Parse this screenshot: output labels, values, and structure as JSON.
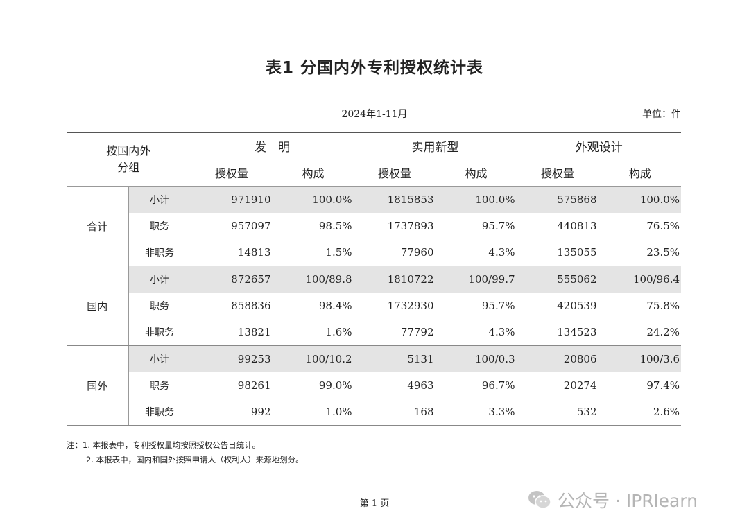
{
  "title": "表1  分国内外专利授权统计表",
  "period": "2024年1-11月",
  "unit": "单位：件",
  "header": {
    "group_label_line1": "按国内外",
    "group_label_line2": "分组",
    "categories": [
      "发　明",
      "实用新型",
      "外观设计"
    ],
    "sub_cols": [
      "授权量",
      "构成",
      "授权量",
      "构成",
      "授权量",
      "构成"
    ]
  },
  "groups": [
    {
      "name": "合计",
      "rows": [
        {
          "label": "小计",
          "values": [
            "971910",
            "100.0%",
            "1815853",
            "100.0%",
            "575868",
            "100.0%"
          ]
        },
        {
          "label": "职务",
          "values": [
            "957097",
            "98.5%",
            "1737893",
            "95.7%",
            "440813",
            "76.5%"
          ]
        },
        {
          "label": "非职务",
          "values": [
            "14813",
            "1.5%",
            "77960",
            "4.3%",
            "135055",
            "23.5%"
          ]
        }
      ]
    },
    {
      "name": "国内",
      "rows": [
        {
          "label": "小计",
          "values": [
            "872657",
            "100/89.8",
            "1810722",
            "100/99.7",
            "555062",
            "100/96.4"
          ]
        },
        {
          "label": "职务",
          "values": [
            "858836",
            "98.4%",
            "1732930",
            "95.7%",
            "420539",
            "75.8%"
          ]
        },
        {
          "label": "非职务",
          "values": [
            "13821",
            "1.6%",
            "77792",
            "4.3%",
            "134523",
            "24.2%"
          ]
        }
      ]
    },
    {
      "name": "国外",
      "rows": [
        {
          "label": "小计",
          "values": [
            "99253",
            "100/10.2",
            "5131",
            "100/0.3",
            "20806",
            "100/3.6"
          ]
        },
        {
          "label": "职务",
          "values": [
            "98261",
            "99.0%",
            "4963",
            "96.7%",
            "20274",
            "97.4%"
          ]
        },
        {
          "label": "非职务",
          "values": [
            "992",
            "1.0%",
            "168",
            "3.3%",
            "532",
            "2.6%"
          ]
        }
      ]
    }
  ],
  "notes": [
    "注：1. 本报表中，专利授权量均按照授权公告日统计。",
    "2. 本报表中，国内和国外按照申请人（权利人）来源地划分。"
  ],
  "page_number": "第 1 页",
  "watermark": {
    "text": "公众号 · IPRlearn",
    "icon": "wechat-icon"
  }
}
